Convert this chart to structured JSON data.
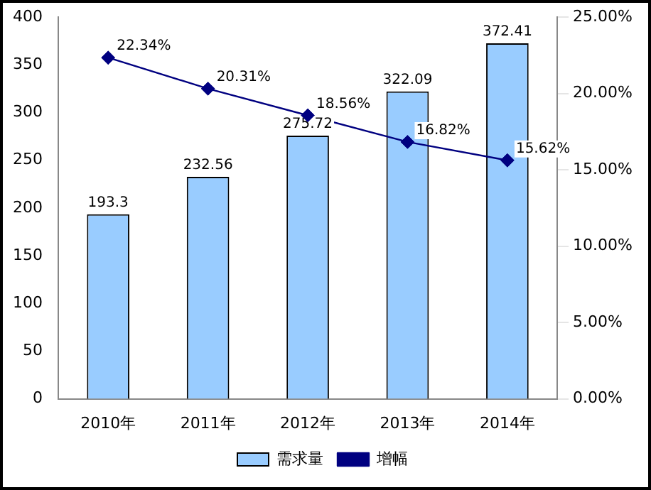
{
  "chart_data": {
    "type": "bar",
    "categories": [
      "2010年",
      "2011年",
      "2012年",
      "2013年",
      "2014年"
    ],
    "series": [
      {
        "name": "需求量",
        "color": "#99ccff",
        "values": [
          193.3,
          232.56,
          275.72,
          322.09,
          372.41
        ]
      },
      {
        "name": "增幅",
        "type": "line",
        "axis": "y2",
        "color": "#000080",
        "values": [
          22.34,
          20.31,
          18.56,
          16.82,
          15.62
        ],
        "value_labels": [
          "22.34%",
          "20.31%",
          "18.56%",
          "16.82%",
          "15.62%"
        ]
      }
    ],
    "ylim": [
      0,
      400
    ],
    "yticks": [
      0,
      50,
      100,
      150,
      200,
      250,
      300,
      350,
      400
    ],
    "y2lim": [
      0,
      25
    ],
    "y2ticks": [
      {
        "value": 0,
        "label": "0.00%"
      },
      {
        "value": 5,
        "label": "5.00%"
      },
      {
        "value": 10,
        "label": "10.00%"
      },
      {
        "value": 15,
        "label": "15.00%"
      },
      {
        "value": 20,
        "label": "20.00%"
      },
      {
        "value": 25,
        "label": "25.00%"
      }
    ],
    "data_labels": true,
    "grid": false,
    "legend": "bottom",
    "marker": "diamond",
    "line_style": "solid"
  }
}
